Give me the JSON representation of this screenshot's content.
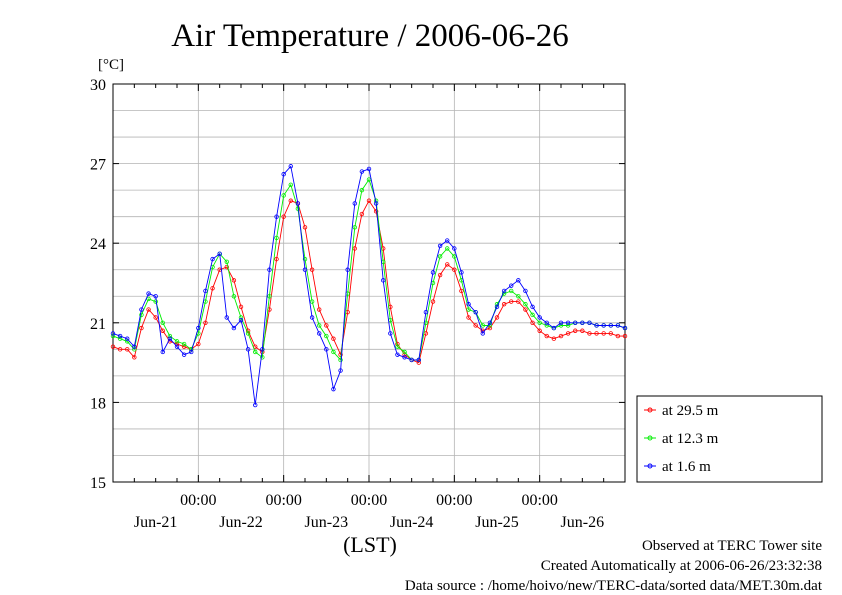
{
  "chart_data": {
    "type": "line",
    "title": "Air Temperature / 2006-06-26",
    "ylabel": "[°C]",
    "xlabel": "(LST)",
    "ylim": [
      15,
      30
    ],
    "yticks": [
      15,
      18,
      21,
      24,
      27,
      30
    ],
    "xlim_hours": [
      0,
      144
    ],
    "hour_ticks": [
      "00:00",
      "00:00",
      "00:00",
      "00:00",
      "00:00"
    ],
    "day_labels": [
      "Jun-21",
      "Jun-22",
      "Jun-23",
      "Jun-24",
      "Jun-25",
      "Jun-26"
    ],
    "grid": true,
    "legend_position": "right-middle",
    "series": [
      {
        "name": "at 29.5 m",
        "color": "#ff0000",
        "x": [
          0,
          2,
          4,
          6,
          8,
          10,
          12,
          14,
          16,
          18,
          20,
          22,
          24,
          26,
          28,
          30,
          32,
          34,
          36,
          38,
          40,
          42,
          44,
          46,
          48,
          50,
          52,
          54,
          56,
          58,
          60,
          62,
          64,
          66,
          68,
          70,
          72,
          74,
          76,
          78,
          80,
          82,
          84,
          86,
          88,
          90,
          92,
          94,
          96,
          98,
          100,
          102,
          104,
          106,
          108,
          110,
          112,
          114,
          116,
          118,
          120,
          122,
          124,
          126,
          128,
          130,
          132,
          134,
          136,
          138,
          140,
          142,
          144
        ],
        "y": [
          20.1,
          20.0,
          20.0,
          19.7,
          20.8,
          21.5,
          21.2,
          20.7,
          20.3,
          20.2,
          20.1,
          20.0,
          20.2,
          21.0,
          22.3,
          23.0,
          23.1,
          22.6,
          21.6,
          20.7,
          20.1,
          19.9,
          21.5,
          23.4,
          25.0,
          25.6,
          25.5,
          24.6,
          23.0,
          21.5,
          20.9,
          20.4,
          19.8,
          21.4,
          23.8,
          25.1,
          25.6,
          25.2,
          23.8,
          21.6,
          20.2,
          19.8,
          19.6,
          19.5,
          20.6,
          21.8,
          22.8,
          23.2,
          23.0,
          22.2,
          21.2,
          20.9,
          20.7,
          20.8,
          21.2,
          21.7,
          21.8,
          21.8,
          21.5,
          21.0,
          20.7,
          20.5,
          20.4,
          20.5,
          20.6,
          20.7,
          20.7,
          20.6,
          20.6,
          20.6,
          20.6,
          20.5,
          20.5
        ]
      },
      {
        "name": "at 12.3 m",
        "color": "#00ee00",
        "x": [
          0,
          2,
          4,
          6,
          8,
          10,
          12,
          14,
          16,
          18,
          20,
          22,
          24,
          26,
          28,
          30,
          32,
          34,
          36,
          38,
          40,
          42,
          44,
          46,
          48,
          50,
          52,
          54,
          56,
          58,
          60,
          62,
          64,
          66,
          68,
          70,
          72,
          74,
          76,
          78,
          80,
          82,
          84,
          86,
          88,
          90,
          92,
          94,
          96,
          98,
          100,
          102,
          104,
          106,
          108,
          110,
          112,
          114,
          116,
          118,
          120,
          122,
          124,
          126,
          128,
          130,
          132,
          134,
          136,
          138,
          140,
          142,
          144
        ],
        "y": [
          20.5,
          20.4,
          20.3,
          20.0,
          21.3,
          21.9,
          21.8,
          21.0,
          20.5,
          20.3,
          20.2,
          20.0,
          20.6,
          21.8,
          23.1,
          23.6,
          23.3,
          22.0,
          21.2,
          20.6,
          19.9,
          19.7,
          22.0,
          24.2,
          25.8,
          26.2,
          25.3,
          23.4,
          21.8,
          20.9,
          20.5,
          19.9,
          19.6,
          22.1,
          24.6,
          26.0,
          26.4,
          25.6,
          23.3,
          21.1,
          20.1,
          19.9,
          19.6,
          19.6,
          21.0,
          22.5,
          23.5,
          23.8,
          23.5,
          22.6,
          21.5,
          21.4,
          20.9,
          20.9,
          21.7,
          22.1,
          22.2,
          22.0,
          21.7,
          21.3,
          21.0,
          20.9,
          20.8,
          20.9,
          20.9,
          21.0,
          21.0,
          21.0,
          20.9,
          20.9,
          20.9,
          20.9,
          20.8
        ]
      },
      {
        "name": "at 1.6 m",
        "color": "#0000ff",
        "x": [
          0,
          2,
          4,
          6,
          8,
          10,
          12,
          14,
          16,
          18,
          20,
          22,
          24,
          26,
          28,
          30,
          32,
          34,
          36,
          38,
          40,
          42,
          44,
          46,
          48,
          50,
          52,
          54,
          56,
          58,
          60,
          62,
          64,
          66,
          68,
          70,
          72,
          74,
          76,
          78,
          80,
          82,
          84,
          86,
          88,
          90,
          92,
          94,
          96,
          98,
          100,
          102,
          104,
          106,
          108,
          110,
          112,
          114,
          116,
          118,
          120,
          122,
          124,
          126,
          128,
          130,
          132,
          134,
          136,
          138,
          140,
          142,
          144
        ],
        "y": [
          20.6,
          20.5,
          20.4,
          20.1,
          21.5,
          22.1,
          22.0,
          19.9,
          20.4,
          20.1,
          19.8,
          19.9,
          20.8,
          22.2,
          23.4,
          23.6,
          21.2,
          20.8,
          21.1,
          20.0,
          17.9,
          20.0,
          23.0,
          25.0,
          26.6,
          26.9,
          25.5,
          23.0,
          21.2,
          20.6,
          20.0,
          18.5,
          19.2,
          23.0,
          25.5,
          26.7,
          26.8,
          25.5,
          22.6,
          20.6,
          19.8,
          19.7,
          19.6,
          19.6,
          21.4,
          22.9,
          23.9,
          24.1,
          23.8,
          22.9,
          21.7,
          21.4,
          20.6,
          21.0,
          21.6,
          22.2,
          22.4,
          22.6,
          22.2,
          21.6,
          21.2,
          21.0,
          20.8,
          21.0,
          21.0,
          21.0,
          21.0,
          21.0,
          20.9,
          20.9,
          20.9,
          20.9,
          20.8
        ]
      }
    ]
  },
  "footer": {
    "line1": "Observed at TERC Tower site",
    "line2": "Created Automatically at 2006-06-26/23:32:38",
    "line3": "Data source : /home/hoivo/new/TERC-data/sorted  data/MET.30m.dat"
  }
}
